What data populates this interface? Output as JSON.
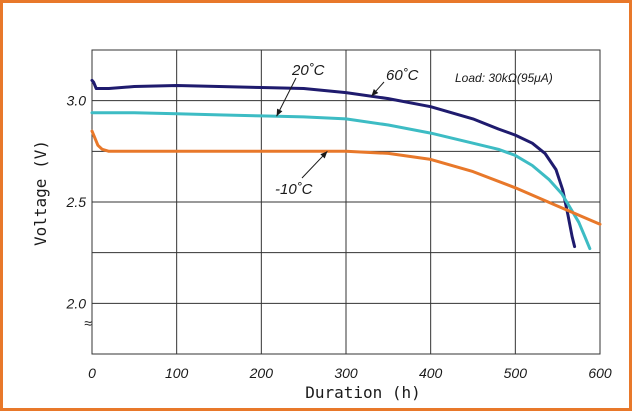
{
  "colors": {
    "frame": "#E8782A",
    "grid": "#333333"
  },
  "chart_data": {
    "type": "line",
    "title": "",
    "xlabel": "Duration (h)",
    "ylabel": "Voltage (V)",
    "xlim": [
      0,
      600
    ],
    "ylim": [
      1.75,
      3.25
    ],
    "x_ticks": [
      0,
      100,
      200,
      300,
      400,
      500,
      600
    ],
    "x_tick_labels": [
      "0",
      "100",
      "200",
      "300",
      "400",
      "500",
      "600"
    ],
    "y_ticks": [
      2.0,
      2.5,
      3.0
    ],
    "y_tick_labels": [
      "2.0",
      "2.5",
      "3.0"
    ],
    "axis_break_symbol": "≈",
    "grid": true,
    "load_note": "Load: 30kΩ(95μA)",
    "series": [
      {
        "name": "60˚C",
        "color": "#1F1B6E",
        "x": [
          0,
          2,
          5,
          8,
          12,
          20,
          50,
          100,
          150,
          200,
          250,
          300,
          350,
          400,
          450,
          480,
          500,
          520,
          535,
          548,
          556,
          562,
          567,
          570
        ],
        "y": [
          3.1,
          3.09,
          3.06,
          3.06,
          3.06,
          3.06,
          3.07,
          3.075,
          3.07,
          3.065,
          3.06,
          3.04,
          3.01,
          2.97,
          2.91,
          2.86,
          2.83,
          2.79,
          2.74,
          2.66,
          2.56,
          2.44,
          2.33,
          2.28
        ]
      },
      {
        "name": "20˚C",
        "color": "#3DBCC4",
        "x": [
          0,
          50,
          100,
          150,
          200,
          250,
          300,
          350,
          400,
          450,
          480,
          500,
          520,
          540,
          555,
          565,
          575,
          582,
          588
        ],
        "y": [
          2.94,
          2.94,
          2.935,
          2.93,
          2.925,
          2.92,
          2.91,
          2.88,
          2.84,
          2.79,
          2.76,
          2.73,
          2.68,
          2.61,
          2.54,
          2.47,
          2.4,
          2.33,
          2.27
        ]
      },
      {
        "name": "-10˚C",
        "color": "#E8782A",
        "x": [
          0,
          3,
          7,
          12,
          20,
          50,
          100,
          150,
          200,
          250,
          300,
          350,
          400,
          450,
          500,
          550,
          600
        ],
        "y": [
          2.85,
          2.82,
          2.78,
          2.76,
          2.75,
          2.75,
          2.75,
          2.75,
          2.75,
          2.75,
          2.75,
          2.74,
          2.71,
          2.65,
          2.57,
          2.48,
          2.39
        ]
      }
    ],
    "annotations": [
      {
        "text": "60˚C",
        "series": "60˚C",
        "at_x": 330
      },
      {
        "text": "20˚C",
        "series": "20˚C",
        "at_x": 218
      },
      {
        "text": "-10˚C",
        "series": "-10˚C",
        "at_x": 278
      }
    ]
  }
}
